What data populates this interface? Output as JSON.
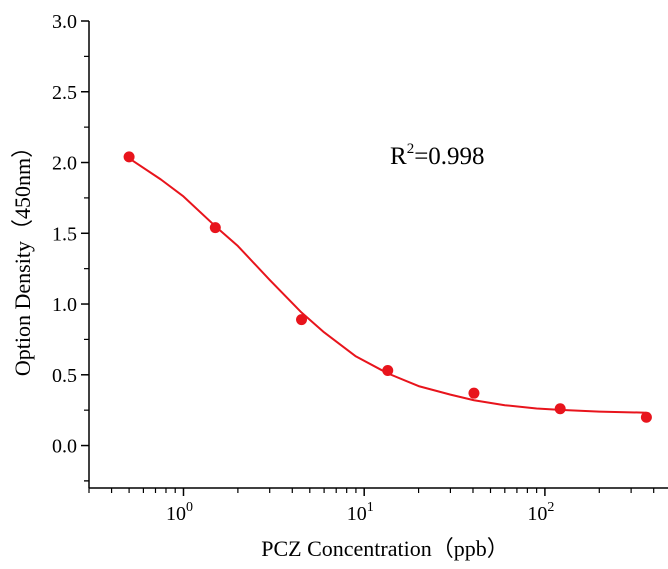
{
  "chart_data": {
    "type": "scatter",
    "title": "",
    "xlabel": "PCZ  Concentration（ppb）",
    "ylabel": "Option Density（450nm）",
    "x_scale": "log",
    "xlim": [
      0.3,
      480
    ],
    "ylim": [
      -0.3,
      3.0
    ],
    "x_ticks": [
      {
        "value": 1,
        "base": "10",
        "exp": "0"
      },
      {
        "value": 10,
        "base": "10",
        "exp": "1"
      },
      {
        "value": 100,
        "base": "10",
        "exp": "2"
      }
    ],
    "y_ticks": [
      {
        "value": 0.0,
        "label": "0.0"
      },
      {
        "value": 0.5,
        "label": "0.5"
      },
      {
        "value": 1.0,
        "label": "1.0"
      },
      {
        "value": 1.5,
        "label": "1.5"
      },
      {
        "value": 2.0,
        "label": "2.0"
      },
      {
        "value": 2.5,
        "label": "2.5"
      },
      {
        "value": 3.0,
        "label": "3.0"
      }
    ],
    "grid": false,
    "series": [
      {
        "marker": "circle",
        "color": "#e8141c",
        "points": [
          {
            "x": 0.5,
            "y": 2.04
          },
          {
            "x": 1.5,
            "y": 1.54
          },
          {
            "x": 4.5,
            "y": 0.89
          },
          {
            "x": 13.5,
            "y": 0.53
          },
          {
            "x": 40.5,
            "y": 0.37
          },
          {
            "x": 121.5,
            "y": 0.26
          },
          {
            "x": 364.5,
            "y": 0.2
          }
        ]
      }
    ],
    "fit": {
      "model": "four-parameter logistic",
      "color": "#e8141c",
      "x_range": [
        0.5,
        364.5
      ],
      "curve_points": [
        {
          "x": 0.5,
          "y": 2.03
        },
        {
          "x": 0.75,
          "y": 1.88
        },
        {
          "x": 1.0,
          "y": 1.76
        },
        {
          "x": 1.5,
          "y": 1.55
        },
        {
          "x": 2.0,
          "y": 1.41
        },
        {
          "x": 3.0,
          "y": 1.17
        },
        {
          "x": 4.5,
          "y": 0.94
        },
        {
          "x": 6.0,
          "y": 0.8
        },
        {
          "x": 9.0,
          "y": 0.63
        },
        {
          "x": 13.5,
          "y": 0.51
        },
        {
          "x": 20.0,
          "y": 0.42
        },
        {
          "x": 30.0,
          "y": 0.36
        },
        {
          "x": 40.5,
          "y": 0.32
        },
        {
          "x": 60.0,
          "y": 0.285
        },
        {
          "x": 90.0,
          "y": 0.262
        },
        {
          "x": 121.5,
          "y": 0.252
        },
        {
          "x": 200.0,
          "y": 0.24
        },
        {
          "x": 364.5,
          "y": 0.232
        }
      ]
    },
    "annotations": [
      {
        "text_base": "R",
        "text_sup": "2",
        "text_rest": "=0.998"
      }
    ]
  }
}
